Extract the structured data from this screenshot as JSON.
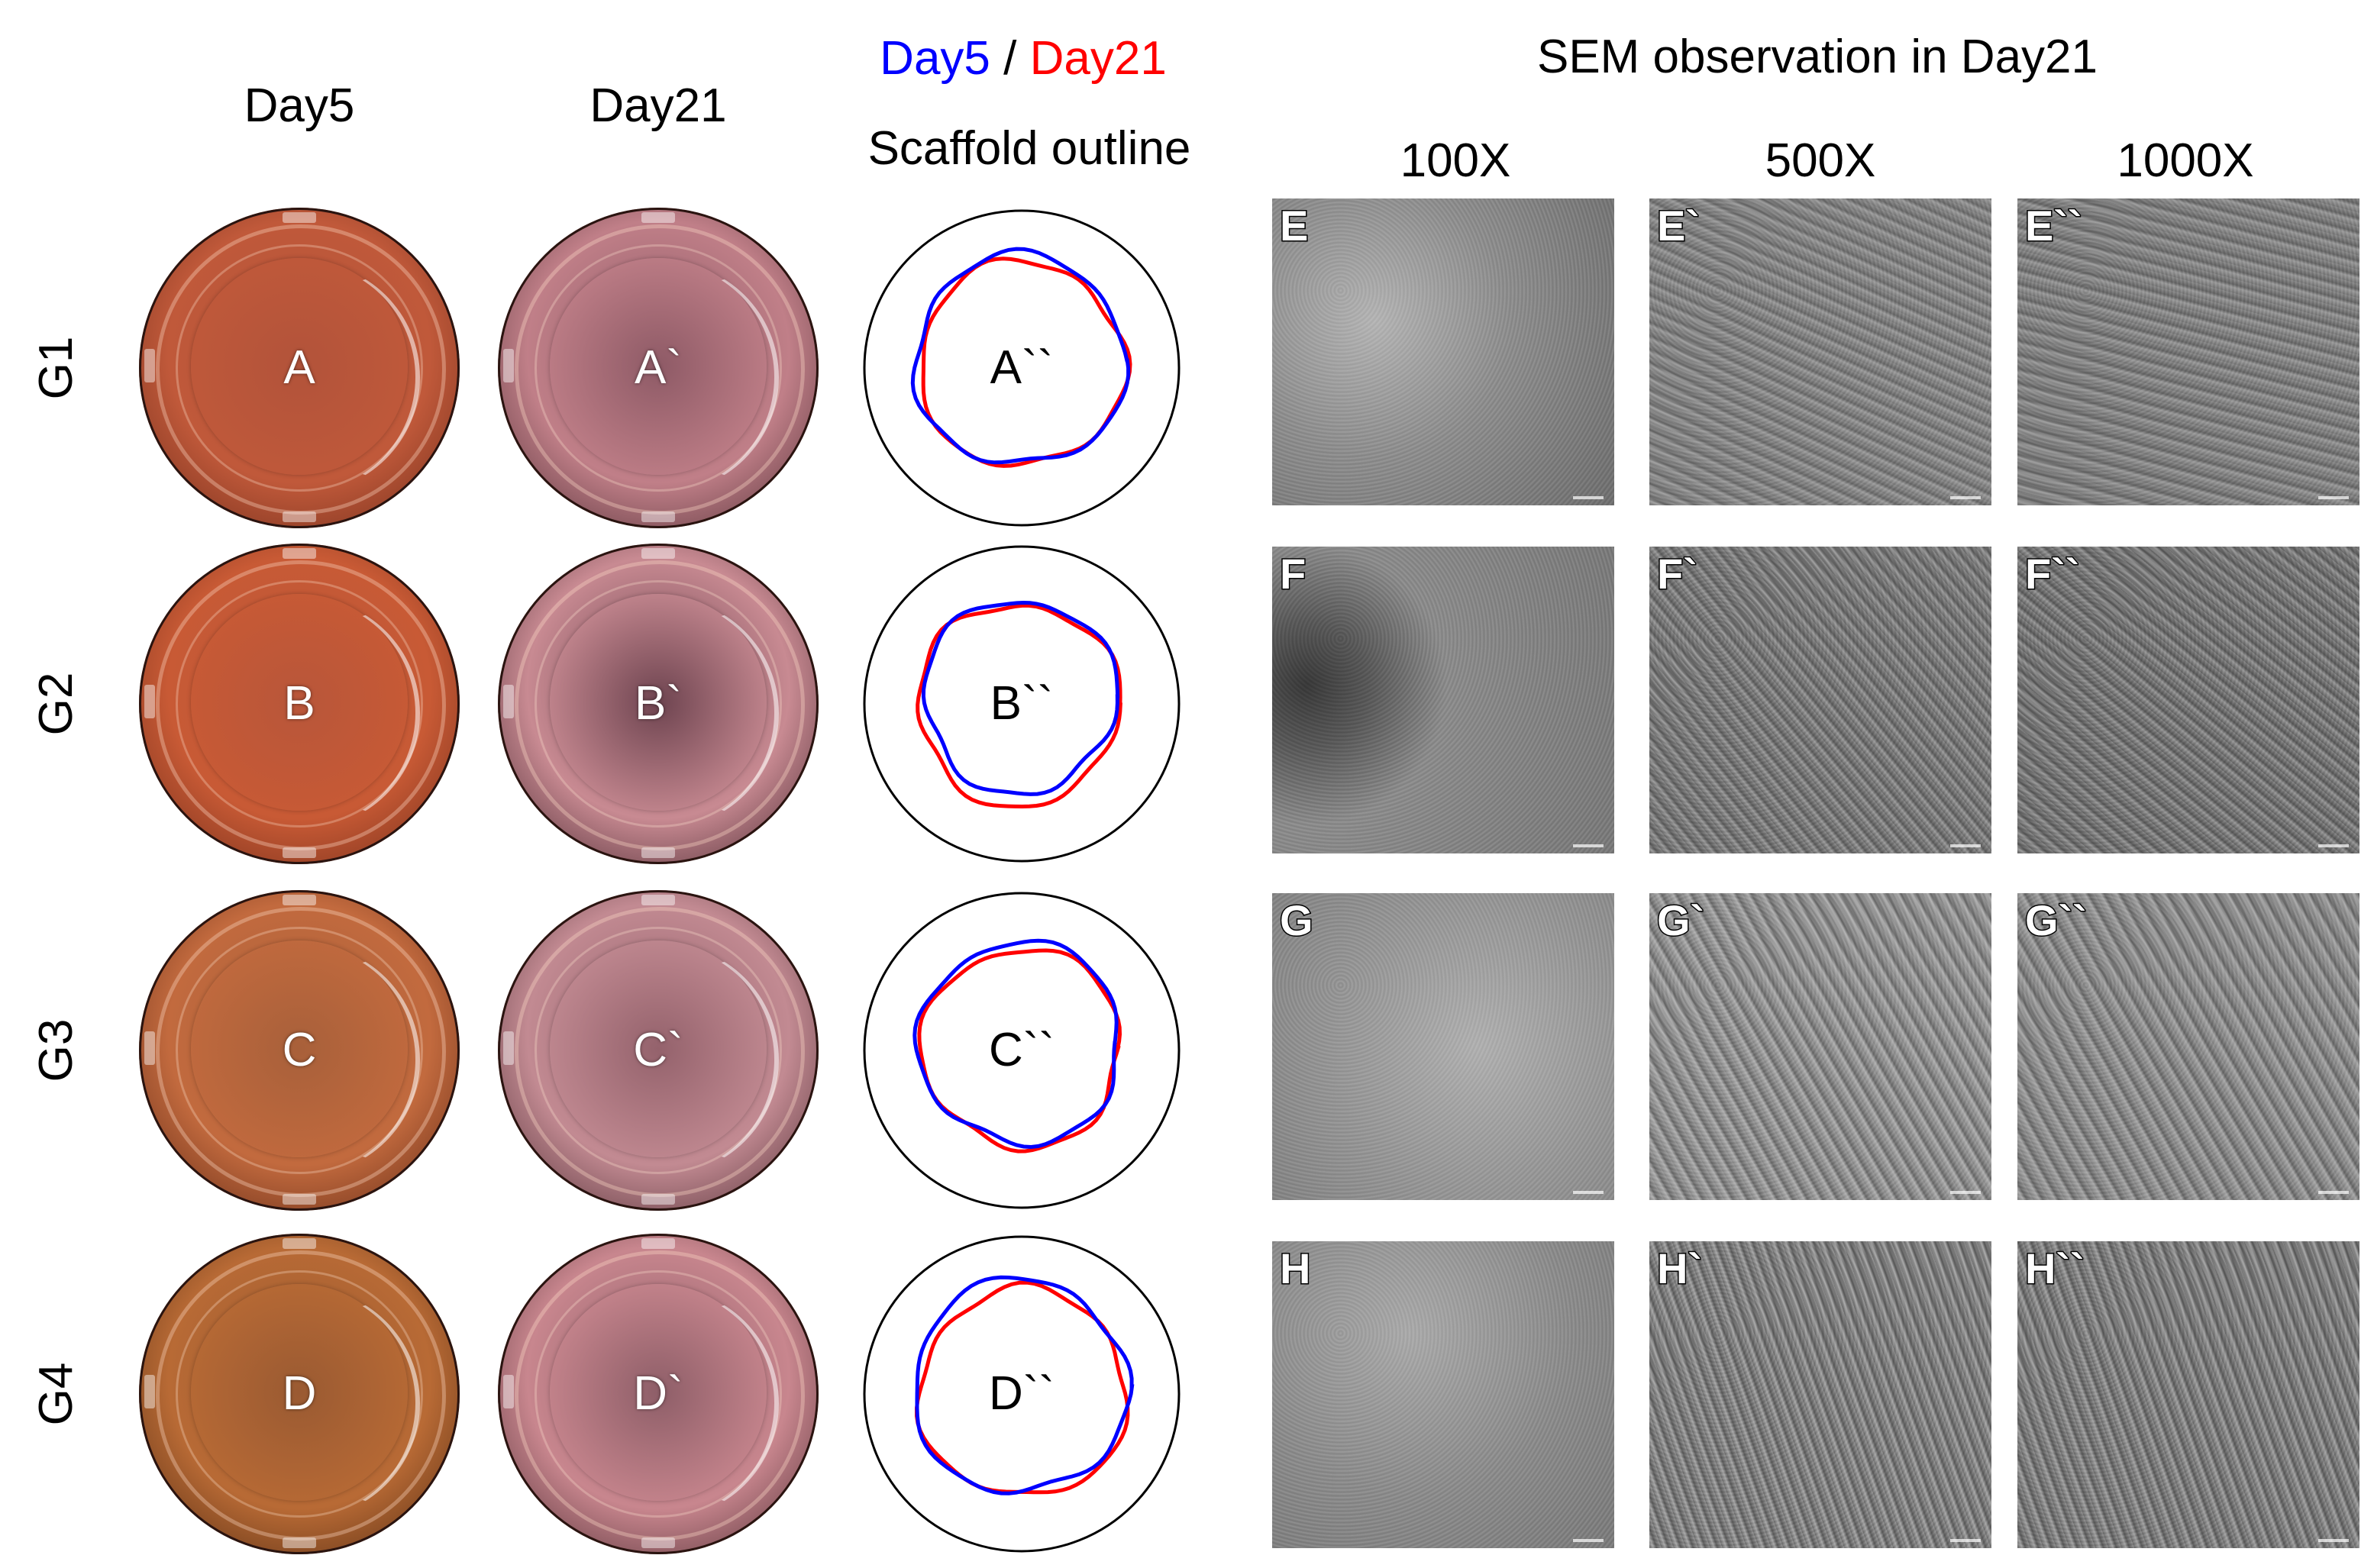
{
  "headers": {
    "day5": "Day5",
    "day21": "Day21",
    "legend_day5": "Day5",
    "legend_sep": " / ",
    "legend_day21": "Day21",
    "outline": "Scaffold outline",
    "sem_title": "SEM observation in Day21",
    "mag_100": "100X",
    "mag_500": "500X",
    "mag_1000": "1000X"
  },
  "colors": {
    "day5": "#0000ff",
    "day21": "#ff0000"
  },
  "rows": [
    {
      "group": "G1",
      "day5": "A",
      "day21": "A`",
      "outline": "A``",
      "sem100": "E",
      "sem500": "E`",
      "sem1000": "E``"
    },
    {
      "group": "G2",
      "day5": "B",
      "day21": "B`",
      "outline": "B``",
      "sem100": "F",
      "sem500": "F`",
      "sem1000": "F``"
    },
    {
      "group": "G3",
      "day5": "C",
      "day21": "C`",
      "outline": "C``",
      "sem100": "G",
      "sem500": "G`",
      "sem1000": "G``"
    },
    {
      "group": "G4",
      "day5": "D",
      "day21": "D`",
      "outline": "D``",
      "sem100": "H",
      "sem500": "H`",
      "sem1000": "H``"
    }
  ]
}
